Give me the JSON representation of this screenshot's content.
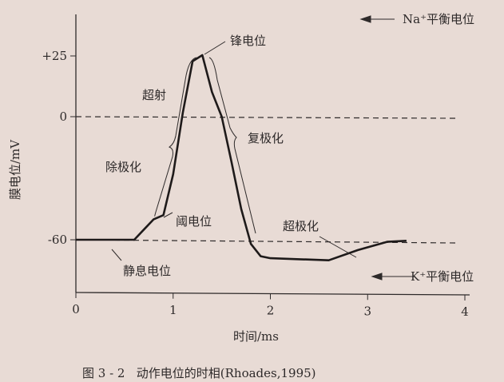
{
  "chart_data": {
    "type": "line",
    "title": "",
    "caption": "图 3 - 2   动作电位的时相(Rhoades,1995)",
    "xlabel": "时间/ms",
    "ylabel": "膜电位/mV",
    "xlim": [
      0,
      4
    ],
    "x_ticks": [
      "0",
      "1",
      "2",
      "3",
      "4"
    ],
    "y_ticks": [
      {
        "value": 25,
        "label": "+25"
      },
      {
        "value": 0,
        "label": "0"
      },
      {
        "value": -60,
        "label": "-60"
      }
    ],
    "grid": false,
    "reference_lines": [
      {
        "value": 0,
        "style": "dashed"
      },
      {
        "value": -60,
        "style": "dashed"
      }
    ],
    "series": [
      {
        "x": [
          0,
          0.6,
          0.7,
          0.8,
          0.9,
          1.0,
          1.1,
          1.2,
          1.3,
          1.4,
          1.5,
          1.6,
          1.7,
          1.8,
          1.9,
          2.0,
          2.3,
          2.6,
          2.9,
          3.2,
          3.4
        ],
        "y": [
          -60,
          -60,
          -55,
          -50,
          -48,
          -28,
          2,
          27,
          30,
          12,
          0,
          -22,
          -45,
          -62,
          -68,
          -69,
          -69.5,
          -70,
          -65,
          -61,
          -60.5
        ]
      }
    ],
    "annotations": {
      "na": "Na⁺平衡电位",
      "k": "K⁺平衡电位",
      "spike": "锋电位",
      "overshoot": "超射",
      "depolarization": "除极化",
      "repolarization": "复极化",
      "threshold": "阈电位",
      "hyperpolarization": "超极化",
      "resting": "静息电位"
    }
  },
  "colors": {
    "background": "#e8dbd5",
    "ink": "#2e2a2a"
  }
}
